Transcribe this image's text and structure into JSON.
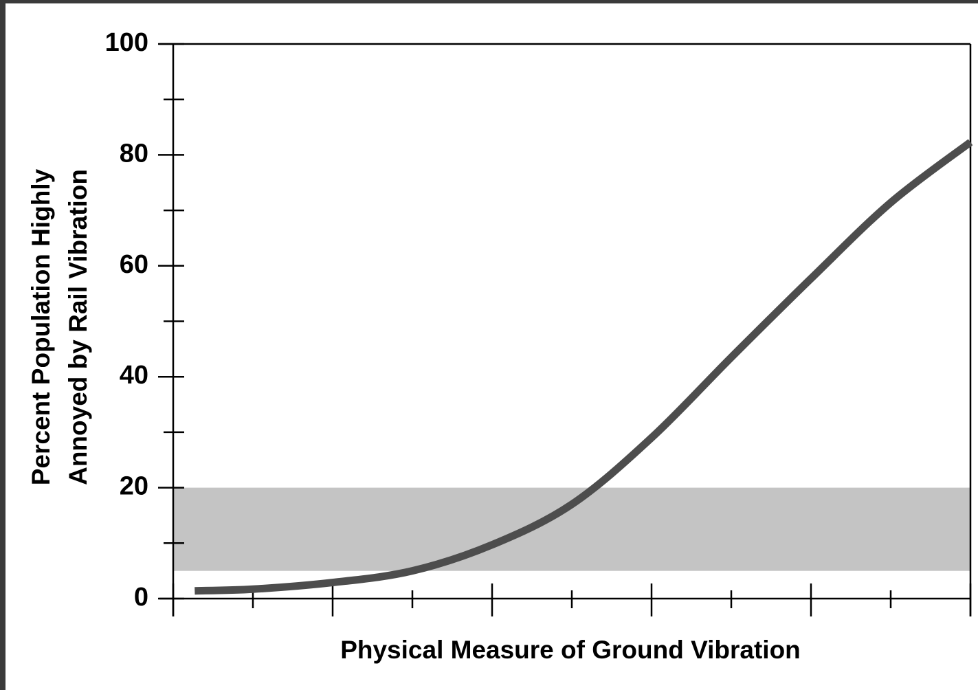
{
  "chart_data": {
    "type": "line",
    "x_label": "Physical Measure of Ground Vibration",
    "y_label": [
      "Percent Population Highly",
      "Annoyed by Rail Vibration"
    ],
    "x": [
      0.27,
      1,
      2,
      3,
      4,
      5,
      6,
      7,
      8,
      9,
      10
    ],
    "values": [
      1.4,
      1.7,
      2.9,
      5,
      9.7,
      17,
      29,
      43.5,
      57.7,
      71.4,
      82.3
    ],
    "color": "#4d4d4d",
    "band": [
      5,
      20
    ],
    "band_color": "#c4c4c4",
    "xlim": [
      0,
      10
    ],
    "xticks": [
      0,
      2,
      4,
      6,
      8,
      10
    ],
    "xticks_minor": [
      1,
      3,
      5,
      7,
      9
    ],
    "ylim": [
      0,
      100
    ],
    "yticks": [
      0,
      20,
      40,
      60,
      80,
      100
    ],
    "yticks_minor": [
      10,
      30,
      50,
      70,
      90
    ]
  }
}
